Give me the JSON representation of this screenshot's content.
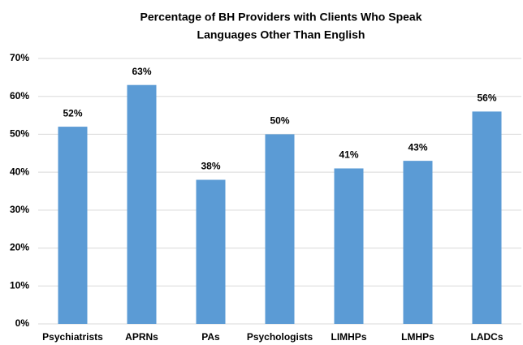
{
  "chart_data": {
    "type": "bar",
    "title": [
      "Percentage of BH Providers with Clients Who Speak",
      "Languages Other Than English"
    ],
    "categories": [
      "Psychiatrists",
      "APRNs",
      "PAs",
      "Psychologists",
      "LIMHPs",
      "LMHPs",
      "LADCs"
    ],
    "values": [
      52,
      63,
      38,
      50,
      41,
      43,
      56
    ],
    "value_labels": [
      "52%",
      "63%",
      "38%",
      "50%",
      "41%",
      "43%",
      "56%"
    ],
    "color": "#5b9bd5",
    "ylim": [
      0,
      70
    ],
    "yticks": [
      {
        "value": 0,
        "label": "0%"
      },
      {
        "value": 10,
        "label": "10%"
      },
      {
        "value": 20,
        "label": "20%"
      },
      {
        "value": 30,
        "label": "30%"
      },
      {
        "value": 40,
        "label": "40%"
      },
      {
        "value": 50,
        "label": "50%"
      },
      {
        "value": 60,
        "label": "60%"
      },
      {
        "value": 70,
        "label": "70%"
      }
    ],
    "grid": true
  }
}
